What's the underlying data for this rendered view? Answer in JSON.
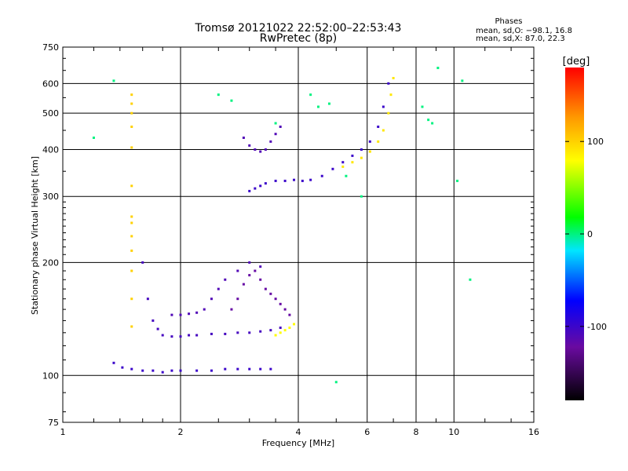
{
  "chart_data": {
    "type": "scatter",
    "title": "Tromsø 20121022 22:52:00–22:53:43",
    "subtitle": "RwPretec (8p)",
    "stats": {
      "heading": "Phases",
      "line1": "mean, sd,O: −98.1, 16.8",
      "line2": "mean, sd,X:  87.0, 22.3"
    },
    "xlabel": "Frequency [MHz]",
    "ylabel": "Stationary phase Virtual Height [km]",
    "xscale": "log",
    "yscale": "log",
    "xlim": [
      1,
      16
    ],
    "ylim": [
      75,
      750
    ],
    "xticks": [
      1,
      2,
      4,
      6,
      8,
      10,
      16
    ],
    "xtick_labels": [
      "1",
      "2",
      "4",
      "6",
      "8",
      "10",
      "16"
    ],
    "yticks": [
      75,
      100,
      200,
      300,
      400,
      500,
      600,
      750
    ],
    "ytick_labels": [
      "75",
      "100",
      "200",
      "300",
      "400",
      "500",
      "600",
      "750"
    ],
    "grid": true,
    "colorbar": {
      "label": "[deg]",
      "range": [
        -180,
        180
      ],
      "ticks": [
        100,
        0,
        -100
      ],
      "tick_labels": [
        "100",
        "0",
        "-100"
      ]
    },
    "traces": [
      {
        "name": "",
        "phase_deg": -100,
        "x": [
          1.35,
          1.42,
          1.5,
          1.6,
          1.7,
          1.8,
          1.9,
          2.0,
          2.2,
          2.4,
          2.6,
          2.8,
          3.0,
          3.2,
          3.4
        ],
        "y": [
          108,
          105,
          104,
          103,
          103,
          102,
          103,
          103,
          103,
          103,
          104,
          104,
          104,
          104,
          104
        ]
      },
      {
        "name": "",
        "phase_deg": -105,
        "x": [
          1.6,
          1.65,
          1.7,
          1.75,
          1.8,
          1.9,
          2.0,
          2.1,
          2.2,
          2.4,
          2.6,
          2.8,
          3.0,
          3.2,
          3.4,
          3.6
        ],
        "y": [
          200,
          160,
          140,
          133,
          128,
          127,
          127,
          128,
          128,
          129,
          129,
          130,
          130,
          131,
          132,
          134
        ]
      },
      {
        "name": "",
        "phase_deg": -110,
        "x": [
          1.9,
          2.0,
          2.1,
          2.2,
          2.3,
          2.4,
          2.5,
          2.6,
          2.8,
          3.0,
          3.2
        ],
        "y": [
          145,
          145,
          146,
          147,
          150,
          160,
          170,
          180,
          190,
          200,
          195
        ]
      },
      {
        "name": "",
        "phase_deg": -120,
        "x": [
          2.7,
          2.8,
          2.9,
          3.0,
          3.1,
          3.2,
          3.3,
          3.4,
          3.5,
          3.6,
          3.7,
          3.8
        ],
        "y": [
          150,
          160,
          175,
          185,
          190,
          180,
          170,
          165,
          160,
          155,
          150,
          145
        ]
      },
      {
        "name": "",
        "phase_deg": 80,
        "x": [
          3.5,
          3.6,
          3.7,
          3.8,
          3.9
        ],
        "y": [
          128,
          130,
          132,
          134,
          137
        ]
      },
      {
        "name": "",
        "phase_deg": -100,
        "x": [
          3.0,
          3.1,
          3.2,
          3.3,
          3.5,
          3.7,
          3.9,
          4.1,
          4.3,
          4.6,
          4.9,
          5.2,
          5.5,
          5.8,
          6.1,
          6.4,
          6.6,
          6.8
        ],
        "y": [
          310,
          315,
          320,
          325,
          330,
          330,
          332,
          330,
          332,
          340,
          355,
          370,
          385,
          400,
          420,
          460,
          520,
          600
        ]
      },
      {
        "name": "",
        "phase_deg": 90,
        "x": [
          5.2,
          5.5,
          5.8,
          6.1,
          6.4,
          6.6,
          6.8,
          6.9,
          7.0
        ],
        "y": [
          360,
          370,
          380,
          395,
          420,
          450,
          500,
          560,
          620
        ]
      },
      {
        "name": "",
        "phase_deg": -110,
        "x": [
          2.9,
          3.0,
          3.1,
          3.2,
          3.3,
          3.4,
          3.5,
          3.6
        ],
        "y": [
          430,
          410,
          400,
          395,
          400,
          420,
          440,
          460
        ]
      },
      {
        "name": "",
        "phase_deg": 100,
        "x": [
          1.5,
          1.5,
          1.5,
          1.5,
          1.5,
          1.5,
          1.5,
          1.5,
          1.5,
          1.5,
          1.5,
          1.5,
          1.5
        ],
        "y": [
          135,
          160,
          190,
          215,
          235,
          255,
          265,
          320,
          405,
          460,
          500,
          530,
          560
        ]
      },
      {
        "name": "",
        "phase_deg": 0,
        "x": [
          1.2,
          1.35,
          2.5,
          2.7,
          3.5,
          4.3,
          4.5,
          4.8,
          5.0,
          5.3,
          5.8,
          8.3,
          8.6,
          8.8,
          9.1,
          10.2,
          10.5,
          11.0
        ],
        "y": [
          430,
          610,
          560,
          540,
          470,
          560,
          520,
          530,
          96,
          340,
          300,
          520,
          480,
          470,
          660,
          330,
          610,
          180
        ]
      }
    ]
  }
}
